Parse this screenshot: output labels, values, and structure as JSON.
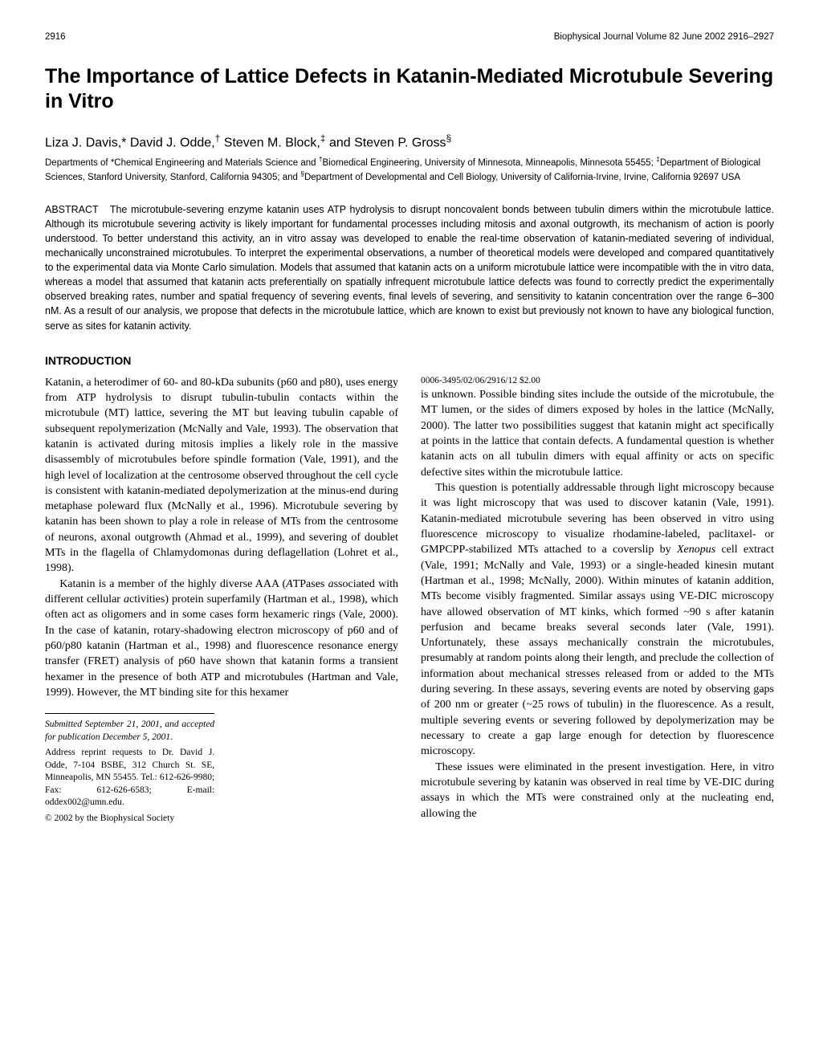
{
  "header": {
    "page_left": "2916",
    "journal_info": "Biophysical Journal   Volume 82   June 2002   2916–2927"
  },
  "title": "The Importance of Lattice Defects in Katanin-Mediated Microtubule Severing in Vitro",
  "authors_html": "Liza J. Davis,* David J. Odde,<sup>†</sup> Steven M. Block,<sup>‡</sup> and Steven P. Gross<sup>§</sup>",
  "affiliations_html": "Departments of *Chemical Engineering and Materials Science and <sup>†</sup>Biomedical Engineering, University of Minnesota, Minneapolis, Minnesota 55455; <sup>‡</sup>Department of Biological Sciences, Stanford University, Stanford, California 94305; and <sup>§</sup>Department of Developmental and Cell Biology, University of California-Irvine, Irvine, California 92697 USA",
  "abstract_label": "ABSTRACT",
  "abstract_text": "The microtubule-severing enzyme katanin uses ATP hydrolysis to disrupt noncovalent bonds between tubulin dimers within the microtubule lattice. Although its microtubule severing activity is likely important for fundamental processes including mitosis and axonal outgrowth, its mechanism of action is poorly understood. To better understand this activity, an in vitro assay was developed to enable the real-time observation of katanin-mediated severing of individual, mechanically unconstrained microtubules. To interpret the experimental observations, a number of theoretical models were developed and compared quantitatively to the experimental data via Monte Carlo simulation. Models that assumed that katanin acts on a uniform microtubule lattice were incompatible with the in vitro data, whereas a model that assumed that katanin acts preferentially on spatially infrequent microtubule lattice defects was found to correctly predict the experimentally observed breaking rates, number and spatial frequency of severing events, final levels of severing, and sensitivity to katanin concentration over the range 6–300 nM. As a result of our analysis, we propose that defects in the microtubule lattice, which are known to exist but previously not known to have any biological function, serve as sites for katanin activity.",
  "section_heading": "INTRODUCTION",
  "body": {
    "p1": "Katanin, a heterodimer of 60- and 80-kDa subunits (p60 and p80), uses energy from ATP hydrolysis to disrupt tubulin-tubulin contacts within the microtubule (MT) lattice, severing the MT but leaving tubulin capable of subsequent repolymerization (McNally and Vale, 1993). The observation that katanin is activated during mitosis implies a likely role in the massive disassembly of microtubules before spindle formation (Vale, 1991), and the high level of localization at the centrosome observed throughout the cell cycle is consistent with katanin-mediated depolymerization at the minus-end during metaphase poleward flux (McNally et al., 1996). Microtubule severing by katanin has been shown to play a role in release of MTs from the centrosome of neurons, axonal outgrowth (Ahmad et al., 1999), and severing of doublet MTs in the flagella of Chlamydomonas during deflagellation (Lohret et al., 1998).",
    "p2_html": "Katanin is a member of the highly diverse AAA (<i>A</i>TPases <i>a</i>ssociated with different cellular <i>a</i>ctivities) protein superfamily (Hartman et al., 1998), which often act as oligomers and in some cases form hexameric rings (Vale, 2000). In the case of katanin, rotary-shadowing electron microscopy of p60 and of p60/p80 katanin (Hartman et al., 1998) and fluorescence resonance energy transfer (FRET) analysis of p60 have shown that katanin forms a transient hexamer in the presence of both ATP and microtubules (Hartman and Vale, 1999). However, the MT binding site for this hexamer",
    "p3": "is unknown. Possible binding sites include the outside of the microtubule, the MT lumen, or the sides of dimers exposed by holes in the lattice (McNally, 2000). The latter two possibilities suggest that katanin might act specifically at points in the lattice that contain defects. A fundamental question is whether katanin acts on all tubulin dimers with equal affinity or acts on specific defective sites within the microtubule lattice.",
    "p4_html": "This question is potentially addressable through light microscopy because it was light microscopy that was used to discover katanin (Vale, 1991). Katanin-mediated microtubule severing has been observed in vitro using fluorescence microscopy to visualize rhodamine-labeled, paclitaxel- or GMPCPP-stabilized MTs attached to a coverslip by <i>Xenopus</i> cell extract (Vale, 1991; McNally and Vale, 1993) or a single-headed kinesin mutant (Hartman et al., 1998; McNally, 2000). Within minutes of katanin addition, MTs become visibly fragmented. Similar assays using VE-DIC microscopy have allowed observation of MT kinks, which formed ~90 s after katanin perfusion and became breaks several seconds later (Vale, 1991). Unfortunately, these assays mechanically constrain the microtubules, presumably at random points along their length, and preclude the collection of information about mechanical stresses released from or added to the MTs during severing. In these assays, severing events are noted by observing gaps of 200 nm or greater (~25 rows of tubulin) in the fluorescence. As a result, multiple severing events or severing followed by depolymerization may be necessary to create a gap large enough for detection by fluorescence microscopy.",
    "p5": "These issues were eliminated in the present investigation. Here, in vitro microtubule severing by katanin was observed in real time by VE-DIC during assays in which the MTs were constrained only at the nucleating end, allowing the"
  },
  "footnotes": {
    "submitted": "Submitted September 21, 2001, and accepted for publication December 5, 2001.",
    "correspondence": "Address reprint requests to Dr. David J. Odde, 7-104 BSBE, 312 Church St. SE, Minneapolis, MN 55455. Tel.: 612-626-9980; Fax: 612-626-6583; E-mail: oddex002@umn.edu.",
    "copyright": "© 2002 by the Biophysical Society",
    "ids": "0006-3495/02/06/2916/12   $2.00"
  }
}
